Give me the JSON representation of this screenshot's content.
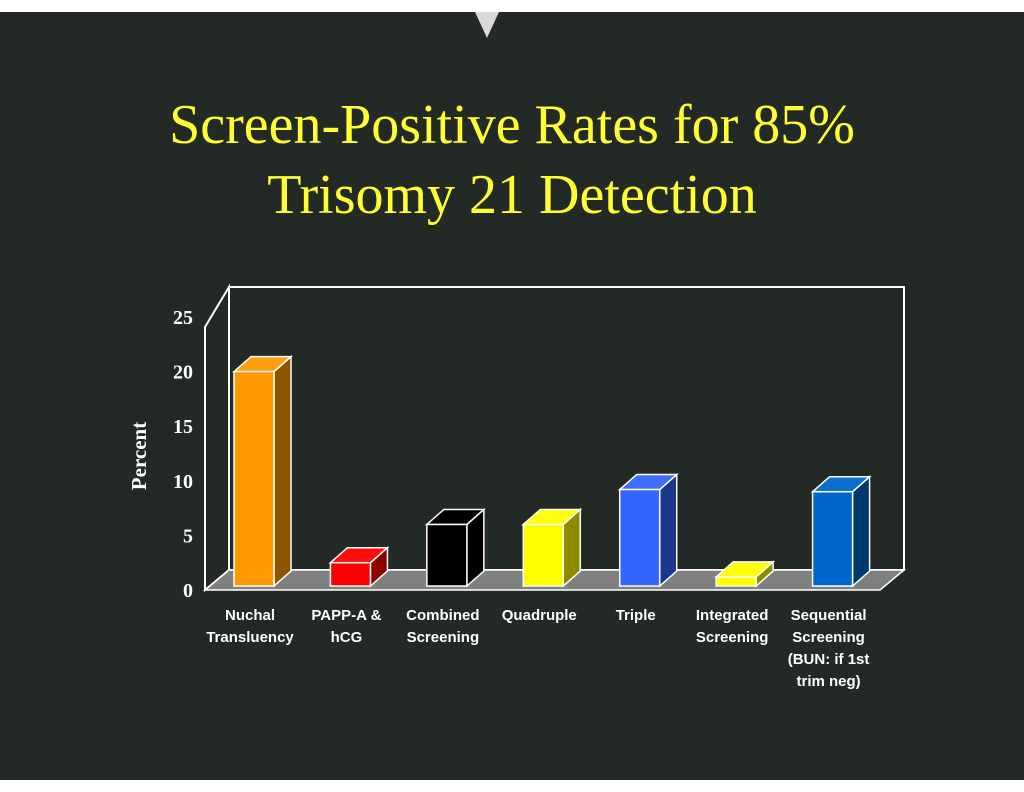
{
  "title": {
    "line1": "Screen-Positive Rates for 85%",
    "line2": "Trisomy 21 Detection"
  },
  "chart_data": {
    "type": "bar",
    "title": "Screen-Positive Rates for 85% Trisomy 21 Detection",
    "ylabel": "Percent",
    "xlabel": "",
    "ylim": [
      0,
      25
    ],
    "yticks": [
      0,
      5,
      10,
      15,
      20,
      25
    ],
    "grid": false,
    "categories": [
      [
        "Nuchal",
        "Transluency"
      ],
      [
        "PAPP-A &",
        "hCG"
      ],
      [
        "Combined",
        "Screening"
      ],
      [
        "Quadruple"
      ],
      [
        "Triple"
      ],
      [
        "Integrated",
        "Screening"
      ],
      [
        "Sequential",
        "Screening",
        "(BUN: if 1st",
        "trim neg)"
      ]
    ],
    "values": [
      20,
      2.5,
      6,
      6,
      9.2,
      1.2,
      9
    ],
    "colors": [
      "#ff9900",
      "#ff0000",
      "#000000",
      "#ffff00",
      "#3366ff",
      "#ffff00",
      "#0066cc"
    ]
  }
}
